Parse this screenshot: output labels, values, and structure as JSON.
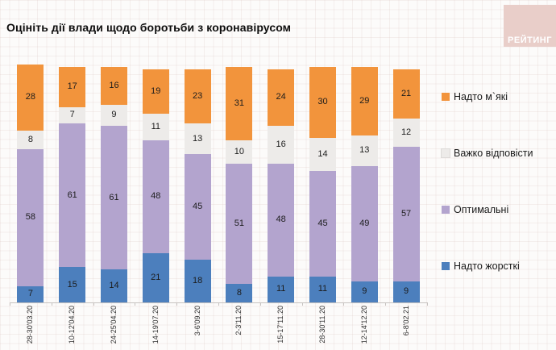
{
  "title": "Оцініть дії влади щодо боротьби з коронавірусом",
  "logo": {
    "text": "РЕЙТИНГ",
    "bg_color": "#e9cec9",
    "text_color": "#ffffff"
  },
  "chart_data": {
    "type": "bar",
    "stacked": true,
    "value_labels": true,
    "legend_position": "right",
    "ylim": [
      0,
      101
    ],
    "unit": "percent",
    "categories": [
      "28-30'03.20",
      "10-12'04.20",
      "24-25'04.20",
      "14-19'07.20",
      "3-6'09.20",
      "2-3'11.20",
      "15-17'11.20",
      "28-30'11.20",
      "12-14'12.20",
      "6-8'02.21"
    ],
    "series": [
      {
        "name": "Надто жорсткі",
        "color": "#4c7fbd",
        "values": [
          7,
          15,
          14,
          21,
          18,
          8,
          11,
          11,
          9,
          9
        ]
      },
      {
        "name": "Оптимальні",
        "color": "#b3a4ce",
        "values": [
          58,
          61,
          61,
          48,
          45,
          51,
          48,
          45,
          49,
          57
        ]
      },
      {
        "name": "Важко відповісти",
        "color": "#edebe9",
        "values": [
          8,
          7,
          9,
          11,
          13,
          10,
          16,
          14,
          13,
          12
        ]
      },
      {
        "name": "Надто м`які",
        "color": "#f2943c",
        "values": [
          28,
          17,
          16,
          19,
          23,
          31,
          24,
          30,
          29,
          21
        ]
      }
    ],
    "legend_order": [
      "Надто м`які",
      "Важко відповісти",
      "Оптимальні",
      "Надто жорсткі"
    ]
  }
}
